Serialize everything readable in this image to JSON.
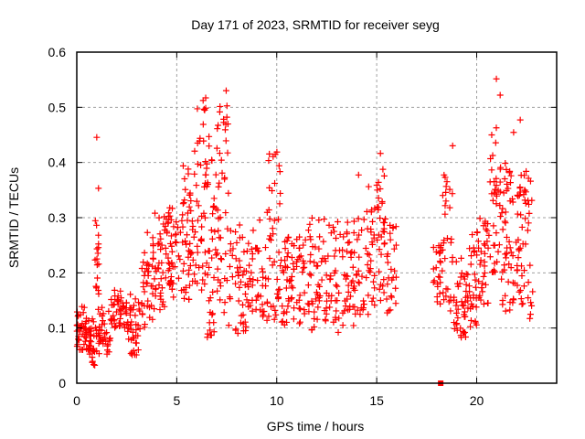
{
  "chart_data": {
    "type": "scatter",
    "title": "Day 171 of 2023, SRMTID for receiver seyg",
    "xlabel": "GPS time / hours",
    "ylabel": "SRMTID / TECUs",
    "xlim": [
      0,
      24
    ],
    "ylim": [
      0,
      0.6
    ],
    "xticks": [
      0,
      5,
      10,
      15,
      20
    ],
    "xtick_labels": [
      "0",
      "5",
      "10",
      "15",
      "20"
    ],
    "yticks": [
      0,
      0.1,
      0.2,
      0.3,
      0.4,
      0.5,
      0.6
    ],
    "ytick_labels": [
      "0",
      "0.1",
      "0.2",
      "0.3",
      "0.4",
      "0.5",
      "0.6"
    ],
    "grid": true,
    "legend": "none",
    "marker": "plus",
    "color": "#ff0000",
    "series": [
      {
        "name": "SRMTID",
        "note": "dense scatter; envelope per time segment [hour_start, hour_end, typical_low, typical_high, peak_value, points]",
        "segments": [
          [
            0.0,
            0.5,
            0.06,
            0.13,
            0.14,
            40
          ],
          [
            0.5,
            0.9,
            0.03,
            0.1,
            0.12,
            30
          ],
          [
            0.9,
            1.1,
            0.05,
            0.3,
            0.45,
            25
          ],
          [
            1.1,
            1.7,
            0.05,
            0.12,
            0.14,
            35
          ],
          [
            1.7,
            2.5,
            0.1,
            0.15,
            0.17,
            45
          ],
          [
            2.5,
            3.2,
            0.05,
            0.14,
            0.17,
            40
          ],
          [
            3.2,
            3.8,
            0.1,
            0.22,
            0.28,
            35
          ],
          [
            3.8,
            4.5,
            0.13,
            0.28,
            0.32,
            45
          ],
          [
            4.5,
            5.2,
            0.15,
            0.3,
            0.32,
            45
          ],
          [
            5.2,
            5.8,
            0.15,
            0.35,
            0.4,
            45
          ],
          [
            5.8,
            6.5,
            0.12,
            0.45,
            0.52,
            50
          ],
          [
            6.5,
            7.0,
            0.08,
            0.35,
            0.45,
            40
          ],
          [
            7.0,
            7.6,
            0.12,
            0.5,
            0.56,
            45
          ],
          [
            7.6,
            8.5,
            0.09,
            0.27,
            0.3,
            45
          ],
          [
            8.5,
            9.5,
            0.12,
            0.25,
            0.3,
            45
          ],
          [
            9.5,
            10.2,
            0.11,
            0.35,
            0.42,
            45
          ],
          [
            10.2,
            11.0,
            0.1,
            0.25,
            0.27,
            45
          ],
          [
            11.0,
            12.0,
            0.09,
            0.25,
            0.31,
            50
          ],
          [
            12.0,
            13.0,
            0.11,
            0.25,
            0.3,
            50
          ],
          [
            13.0,
            14.0,
            0.09,
            0.27,
            0.3,
            50
          ],
          [
            14.0,
            15.0,
            0.12,
            0.3,
            0.39,
            50
          ],
          [
            15.0,
            15.5,
            0.15,
            0.33,
            0.42,
            35
          ],
          [
            15.5,
            16.0,
            0.11,
            0.26,
            0.29,
            25
          ],
          [
            17.8,
            18.3,
            0.14,
            0.24,
            0.25,
            25
          ],
          [
            18.3,
            18.8,
            0.13,
            0.38,
            0.48,
            30
          ],
          [
            18.8,
            19.5,
            0.08,
            0.2,
            0.23,
            40
          ],
          [
            19.5,
            20.0,
            0.1,
            0.25,
            0.4,
            30
          ],
          [
            20.0,
            20.6,
            0.14,
            0.28,
            0.3,
            35
          ],
          [
            20.6,
            21.2,
            0.2,
            0.45,
            0.58,
            40
          ],
          [
            21.2,
            21.8,
            0.13,
            0.35,
            0.4,
            40
          ],
          [
            21.8,
            22.3,
            0.14,
            0.36,
            0.5,
            35
          ],
          [
            22.3,
            22.8,
            0.1,
            0.38,
            0.41,
            30
          ]
        ],
        "outlier_points": [
          [
            18.2,
            0.0
          ]
        ]
      }
    ]
  }
}
